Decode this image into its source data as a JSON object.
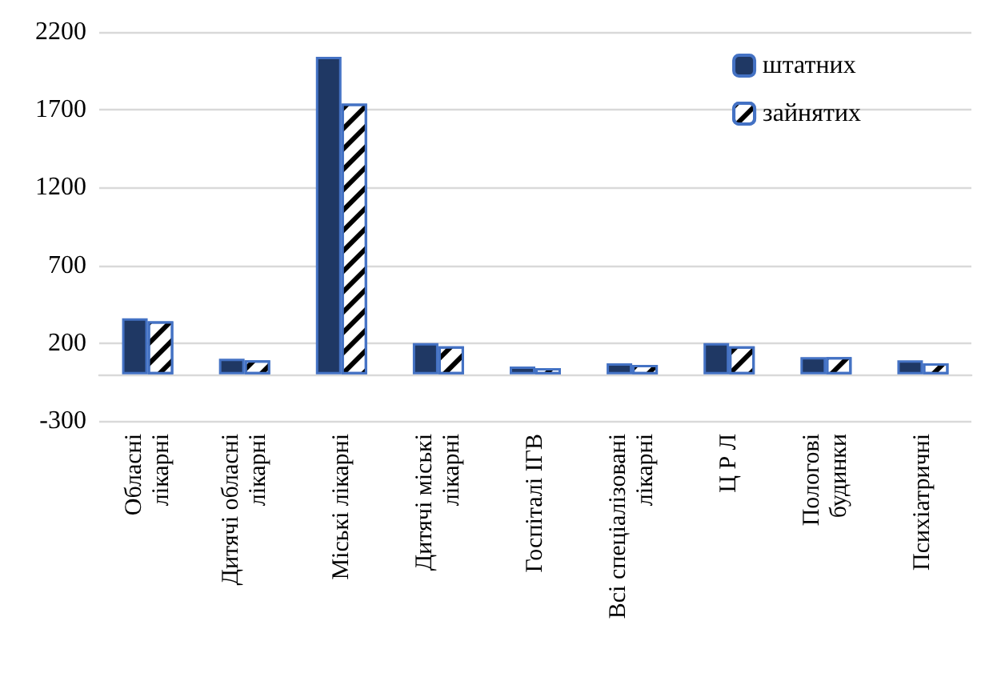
{
  "chart_data": {
    "type": "bar",
    "categories": [
      "Обласні лікарні",
      "Дитячі обласні лікарні",
      "Міські лікарні",
      "Дитячі міські лікарні",
      "Госпіталі ІГВ",
      "Всі спеціалізовані лікарні",
      "Ц Р Л",
      "Пологові будинки",
      "Психіатричні"
    ],
    "series": [
      {
        "name": "штатних",
        "color": "#1f3864",
        "values": [
          360,
          100,
          2040,
          200,
          50,
          70,
          200,
          110,
          90
        ]
      },
      {
        "name": "зайнятих",
        "color": "#ffffff",
        "values": [
          340,
          90,
          1740,
          180,
          40,
          60,
          180,
          110,
          70
        ]
      }
    ],
    "ylim": [
      -300,
      2200
    ],
    "yticks": [
      -300,
      200,
      700,
      1200,
      1700,
      2200
    ],
    "grid": "y",
    "legend": "top right"
  }
}
